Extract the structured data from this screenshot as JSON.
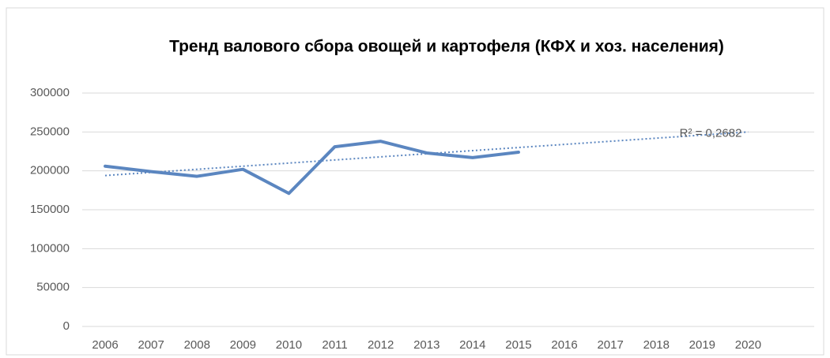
{
  "chart_data": {
    "type": "line",
    "title": "Тренд валового сбора овощей и картофеля (КФХ и хоз. населения)",
    "categories": [
      "2006",
      "2007",
      "2008",
      "2009",
      "2010",
      "2011",
      "2012",
      "2013",
      "2014",
      "2015",
      "2016",
      "2017",
      "2018",
      "2019",
      "2020"
    ],
    "series": [
      {
        "color": "#5b86c0",
        "values": [
          206000,
          199000,
          193000,
          202000,
          171000,
          231000,
          238000,
          223000,
          217000,
          224000,
          null,
          null,
          null,
          null,
          null
        ]
      }
    ],
    "trend": {
      "color": "#5b86c0",
      "label": "R² = 0,2682",
      "values": [
        194000,
        198000,
        202000,
        206000,
        210000,
        214000,
        218000,
        222000,
        226000,
        230000,
        234000,
        238000,
        242000,
        246000,
        250000
      ]
    },
    "ylim": [
      0,
      300000
    ],
    "yticks": [
      0,
      50000,
      100000,
      150000,
      200000,
      250000,
      300000
    ],
    "grid": true
  }
}
